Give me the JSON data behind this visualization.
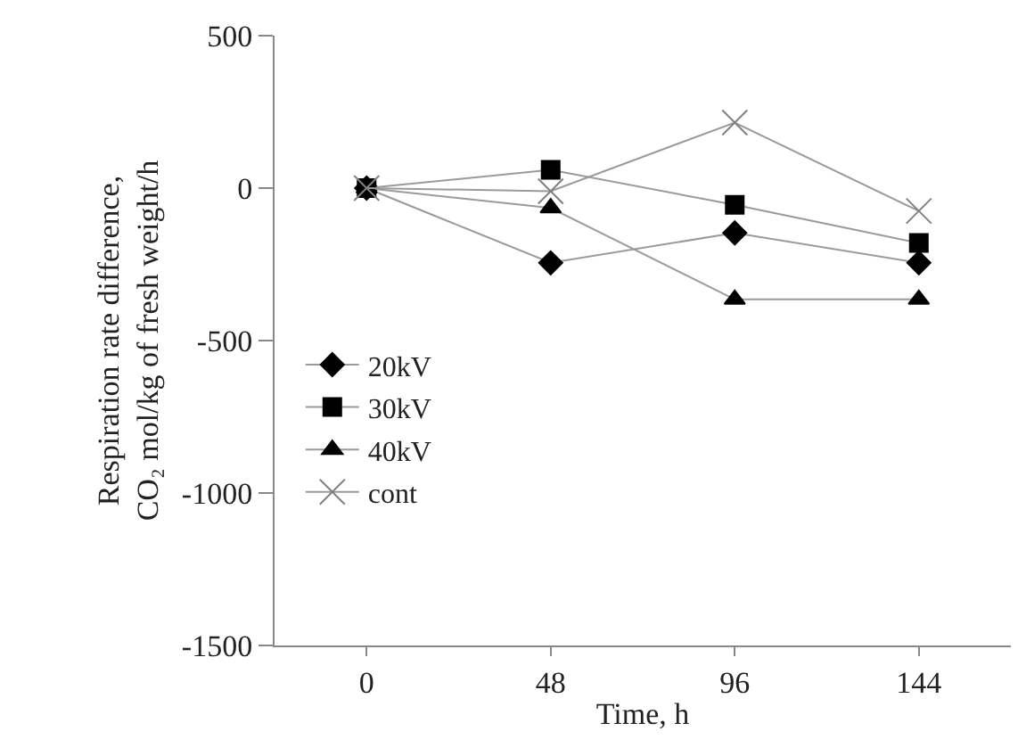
{
  "chart_data": {
    "type": "line",
    "xlabel": "Time, h",
    "ylabel": "Respiration rate difference,\nCO₂ mol/kg of fresh weight/h",
    "x": [
      0,
      48,
      96,
      144
    ],
    "series": [
      {
        "name": "20kV",
        "color": "#000000",
        "marker": "diamond",
        "values": [
          0,
          -245,
          -147,
          -245
        ]
      },
      {
        "name": "30kV",
        "color": "#000000",
        "marker": "square",
        "values": [
          0,
          60,
          -55,
          -180
        ]
      },
      {
        "name": "40kV",
        "color": "#000000",
        "marker": "triangle",
        "values": [
          0,
          -65,
          -365,
          -365
        ]
      },
      {
        "name": "cont",
        "color": "#808080",
        "marker": "cross",
        "values": [
          0,
          -10,
          215,
          -75
        ]
      }
    ],
    "xlim": [
      -24,
      168
    ],
    "xticks": [
      0,
      48,
      96,
      144
    ],
    "ylim": [
      -1500,
      500
    ],
    "yticks": [
      -1500,
      -1000,
      -500,
      0,
      500
    ],
    "grid": false,
    "legend": "bottom left",
    "line_style": "solid"
  }
}
